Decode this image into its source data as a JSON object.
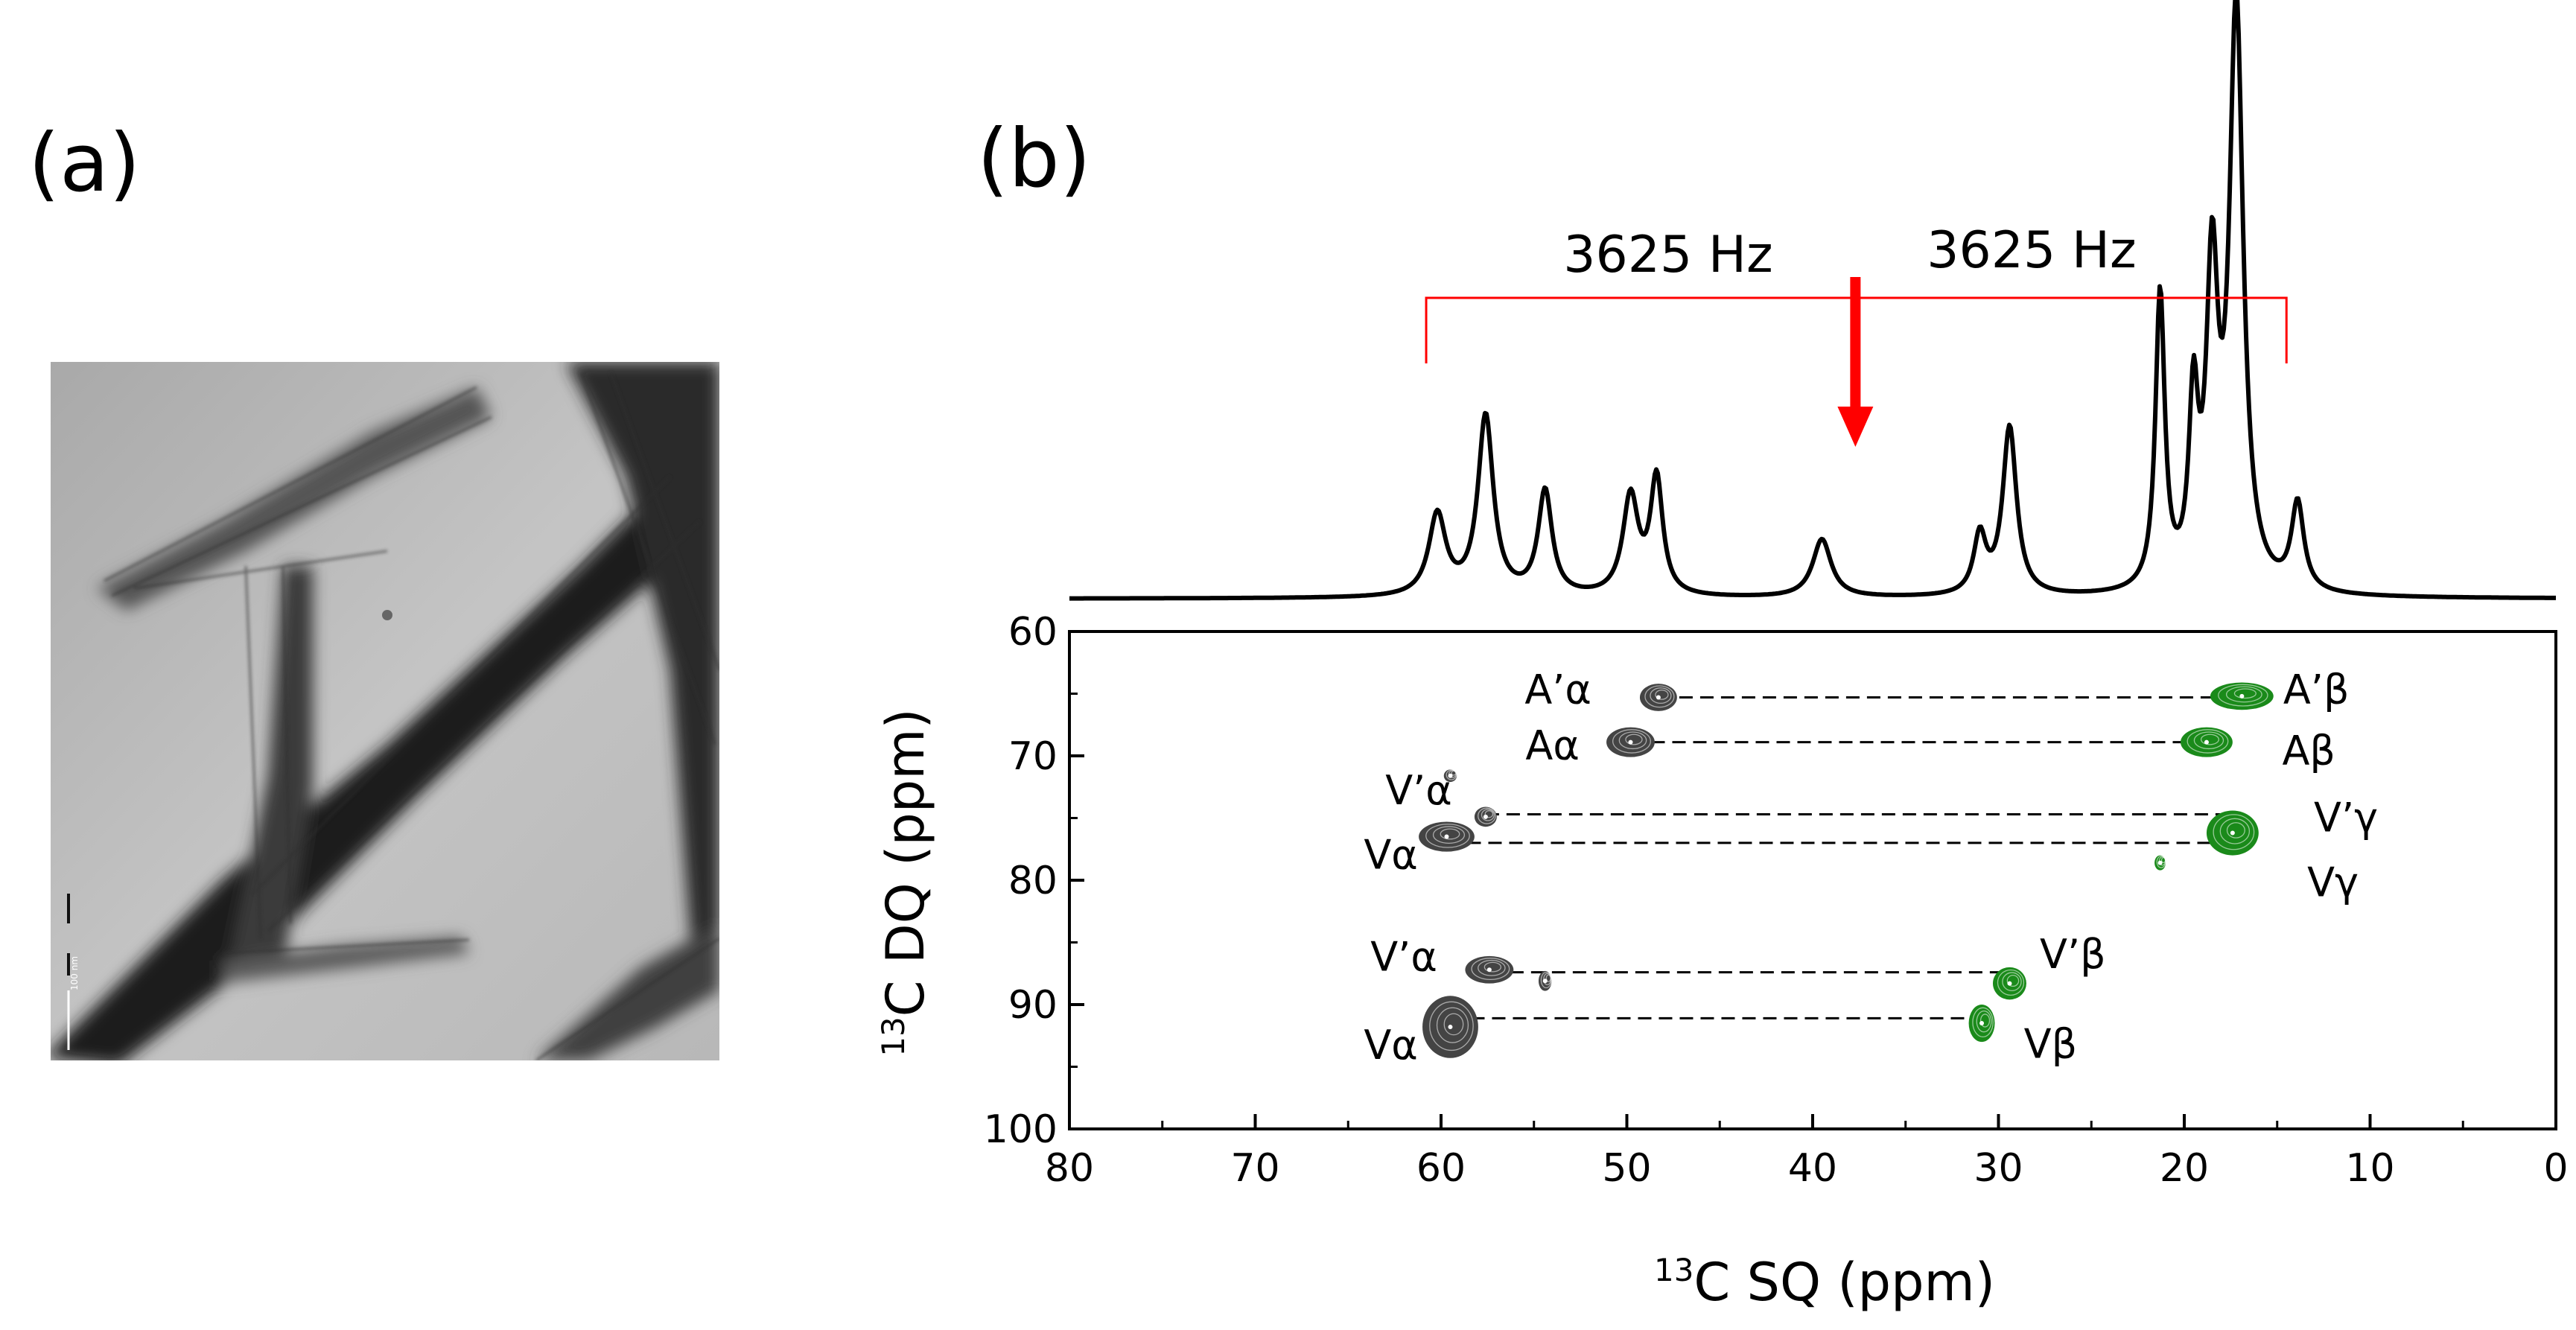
{
  "panels": {
    "a_label": "(a)",
    "b_label": "(b)"
  },
  "colors": {
    "spectrum": "#000000",
    "sq_contours": "#444444",
    "dq_contours": "#1a8a1a",
    "separation": "#ff0000",
    "arrow": "#ff0000"
  },
  "micrograph": {
    "scale_bar_text": "100 nm"
  },
  "chart_data": {
    "type": "2D NMR correlation spectrum with 1D projection",
    "xlabel_pre": "13",
    "xlabel_post": "C SQ (ppm)",
    "ylabel_pre": "13",
    "ylabel_post": "C DQ (ppm)",
    "xlim": [
      80,
      0
    ],
    "ylim": [
      60,
      100
    ],
    "xticks": [
      "80",
      "70",
      "60",
      "50",
      "40",
      "30",
      "20",
      "10",
      "0"
    ],
    "yticks": [
      "60",
      "70",
      "80",
      "90",
      "100"
    ],
    "x_tick_values": [
      80,
      70,
      60,
      50,
      40,
      30,
      20,
      10,
      0
    ],
    "y_tick_values": [
      60,
      70,
      80,
      90,
      100
    ],
    "projection_peaks": [
      {
        "ppm": 60.2,
        "height": 0.14,
        "width": 0.55
      },
      {
        "ppm": 57.6,
        "height": 0.31,
        "width": 0.5
      },
      {
        "ppm": 54.4,
        "height": 0.18,
        "width": 0.45
      },
      {
        "ppm": 49.8,
        "height": 0.17,
        "width": 0.5
      },
      {
        "ppm": 48.4,
        "height": 0.2,
        "width": 0.4
      },
      {
        "ppm": 39.5,
        "height": 0.1,
        "width": 0.6
      },
      {
        "ppm": 31.0,
        "height": 0.1,
        "width": 0.4
      },
      {
        "ppm": 29.4,
        "height": 0.29,
        "width": 0.45
      },
      {
        "ppm": 21.3,
        "height": 0.51,
        "width": 0.3
      },
      {
        "ppm": 19.5,
        "height": 0.3,
        "width": 0.3
      },
      {
        "ppm": 18.5,
        "height": 0.52,
        "width": 0.38
      },
      {
        "ppm": 17.2,
        "height": 1.0,
        "width": 0.45
      },
      {
        "ppm": 13.9,
        "height": 0.15,
        "width": 0.4
      }
    ],
    "separation_bracket": {
      "left_ppm": 60.8,
      "right_ppm": 14.5,
      "center_ppm": 37.7
    },
    "separation_labels": [
      "3625 Hz",
      "3625 Hz"
    ],
    "sq_contours": [
      {
        "x": 48.3,
        "y": 65.3,
        "rx": 1.0,
        "ry": 1.1
      },
      {
        "x": 49.8,
        "y": 68.9,
        "rx": 1.3,
        "ry": 1.2
      },
      {
        "x": 59.5,
        "y": 71.6,
        "rx": 0.35,
        "ry": 0.5
      },
      {
        "x": 59.7,
        "y": 76.5,
        "rx": 1.5,
        "ry": 1.2
      },
      {
        "x": 57.6,
        "y": 74.9,
        "rx": 0.6,
        "ry": 0.8
      },
      {
        "x": 57.4,
        "y": 87.2,
        "rx": 1.3,
        "ry": 1.1
      },
      {
        "x": 59.5,
        "y": 91.8,
        "rx": 1.5,
        "ry": 2.5
      },
      {
        "x": 54.4,
        "y": 88.1,
        "rx": 0.35,
        "ry": 0.8
      }
    ],
    "dq_contours": [
      {
        "x": 16.9,
        "y": 65.2,
        "rx": 1.7,
        "ry": 1.1
      },
      {
        "x": 18.8,
        "y": 68.9,
        "rx": 1.4,
        "ry": 1.2
      },
      {
        "x": 17.4,
        "y": 76.2,
        "rx": 1.4,
        "ry": 1.8
      },
      {
        "x": 21.3,
        "y": 78.6,
        "rx": 0.3,
        "ry": 0.6
      },
      {
        "x": 29.4,
        "y": 88.3,
        "rx": 0.9,
        "ry": 1.3
      },
      {
        "x": 30.9,
        "y": 91.5,
        "rx": 0.7,
        "ry": 1.5
      }
    ],
    "correlation_lines": [
      {
        "y": 65.3,
        "x_from": 48.3,
        "x_to": 16.9
      },
      {
        "y": 68.9,
        "x_from": 49.8,
        "x_to": 18.8
      },
      {
        "y": 74.7,
        "x_from": 57.6,
        "x_to": 17.4
      },
      {
        "y": 77.0,
        "x_from": 59.7,
        "x_to": 17.4
      },
      {
        "y": 87.4,
        "x_from": 57.4,
        "x_to": 29.4
      },
      {
        "y": 91.1,
        "x_from": 59.5,
        "x_to": 30.9
      }
    ],
    "peak_labels": [
      {
        "text": "A’α",
        "x": 53.7,
        "y": 64.7,
        "anchor": "middle"
      },
      {
        "text": "Aα",
        "x": 54.0,
        "y": 69.2,
        "anchor": "middle"
      },
      {
        "text": "V’α",
        "x": 61.2,
        "y": 72.8,
        "anchor": "middle"
      },
      {
        "text": "Vα",
        "x": 62.7,
        "y": 78.0,
        "anchor": "middle"
      },
      {
        "text": "V’α",
        "x": 62.0,
        "y": 86.2,
        "anchor": "middle"
      },
      {
        "text": "Vα",
        "x": 62.7,
        "y": 93.3,
        "anchor": "middle"
      },
      {
        "text": "A’β",
        "x": 12.9,
        "y": 64.7,
        "anchor": "middle"
      },
      {
        "text": "Aβ",
        "x": 13.3,
        "y": 69.6,
        "anchor": "middle"
      },
      {
        "text": "V’γ",
        "x": 11.3,
        "y": 75.0,
        "anchor": "middle"
      },
      {
        "text": "Vγ",
        "x": 12.0,
        "y": 80.2,
        "anchor": "middle"
      },
      {
        "text": "V’β",
        "x": 26.0,
        "y": 86.0,
        "anchor": "middle"
      },
      {
        "text": "Vβ",
        "x": 27.2,
        "y": 93.2,
        "anchor": "middle"
      }
    ]
  }
}
